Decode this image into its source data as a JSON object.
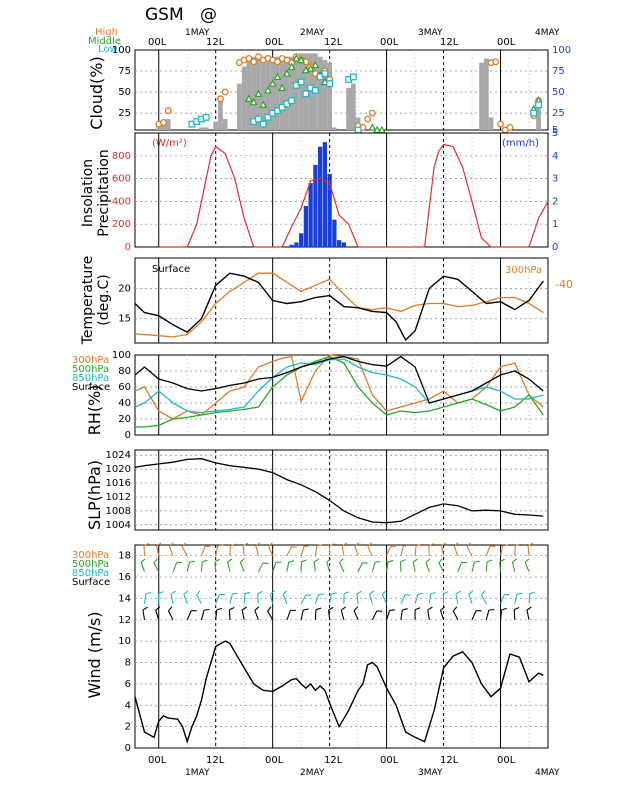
{
  "header": {
    "title": "GSM",
    "title_symbol": "@",
    "cloud_legend": [
      "High",
      "Middle",
      "Low"
    ]
  },
  "time_axis": {
    "top_tick_labels": [
      "00L",
      "12L",
      "00L",
      "12L",
      "00L",
      "12L",
      "00L"
    ],
    "top_day_labels": [
      "1MAY",
      "2MAY",
      "3MAY",
      "4MAY"
    ],
    "bottom_tick_labels": [
      "00L",
      "12L",
      "00L",
      "12L",
      "00L",
      "12L",
      "00L"
    ],
    "bottom_day_labels": [
      "1MAY",
      "2MAY",
      "3MAY",
      "4MAY"
    ],
    "x_range_hours": [
      -5,
      82
    ]
  },
  "colors": {
    "high": "#e07b28",
    "middle": "#2aa52a",
    "low": "#20b8c8",
    "surface": "#000000",
    "bar_gray": "#a8a8a8",
    "precip_blue": "#1a3fd8",
    "insolation_red": "#e03030",
    "axis_blue": "#1a3fd8"
  },
  "chart_data": [
    {
      "type": "bar",
      "panel": "cloud",
      "ylabel": "Cloud(%)",
      "ylim": [
        5,
        100
      ],
      "y_ticks_left": [
        "25",
        "50",
        "75",
        "100"
      ],
      "y_ticks_right": [
        "5",
        "25",
        "50",
        "75",
        "100"
      ],
      "total_cloud_bars": {
        "hours": [
          0,
          1,
          2,
          3,
          4,
          5,
          6,
          7,
          8,
          9,
          10,
          11,
          12,
          13,
          14,
          15,
          16,
          17,
          18,
          19,
          20,
          21,
          22,
          23,
          24,
          25,
          26,
          27,
          28,
          29,
          30,
          31,
          32,
          33,
          34,
          35,
          36,
          37,
          38,
          39,
          40,
          41,
          42,
          43,
          44,
          45,
          46,
          47,
          48,
          49,
          50,
          51,
          52,
          53,
          54,
          55,
          56,
          57,
          58,
          59,
          60,
          61,
          62,
          63,
          64,
          65,
          66,
          67,
          68,
          69,
          70,
          71,
          72,
          73,
          74,
          75,
          76,
          77,
          78,
          79,
          80
        ],
        "values": [
          15,
          15,
          18,
          5,
          5,
          5,
          5,
          5,
          5,
          8,
          8,
          5,
          15,
          40,
          18,
          5,
          5,
          60,
          80,
          88,
          92,
          90,
          88,
          88,
          90,
          92,
          90,
          90,
          92,
          95,
          96,
          96,
          96,
          96,
          92,
          88,
          85,
          8,
          5,
          5,
          55,
          60,
          20,
          10,
          5,
          5,
          5,
          5,
          5,
          5,
          5,
          5,
          5,
          5,
          5,
          5,
          5,
          5,
          5,
          5,
          5,
          5,
          5,
          5,
          5,
          5,
          5,
          5,
          85,
          90,
          20,
          5,
          5,
          5,
          5,
          5,
          5,
          5,
          5,
          5,
          40
        ]
      },
      "high_points": {
        "hours": [
          0,
          1,
          2,
          13,
          14,
          17,
          18,
          19,
          20,
          21,
          22,
          23,
          24,
          25,
          26,
          27,
          28,
          29,
          30,
          31,
          32,
          33,
          34,
          35,
          36,
          42,
          43,
          44,
          45,
          70,
          71,
          72,
          73,
          74,
          79,
          80
        ],
        "values": [
          12,
          14,
          28,
          42,
          50,
          85,
          88,
          90,
          86,
          92,
          88,
          90,
          88,
          86,
          90,
          88,
          85,
          92,
          88,
          86,
          80,
          72,
          70,
          75,
          65,
          10,
          8,
          18,
          25,
          85,
          86,
          12,
          5,
          8,
          22,
          40
        ]
      },
      "middle_points": {
        "hours": [
          19,
          20,
          21,
          22,
          23,
          24,
          25,
          26,
          27,
          28,
          29,
          30,
          31,
          32,
          33,
          34,
          35,
          45,
          46,
          47,
          79,
          80
        ],
        "values": [
          42,
          38,
          48,
          35,
          52,
          60,
          68,
          55,
          72,
          80,
          90,
          88,
          76,
          78,
          82,
          70,
          62,
          8,
          5,
          5,
          30,
          40
        ]
      },
      "low_points": {
        "hours": [
          7,
          8,
          9,
          10,
          20,
          21,
          22,
          23,
          24,
          25,
          26,
          27,
          28,
          29,
          30,
          31,
          32,
          33,
          34,
          35,
          36,
          40,
          41,
          42,
          79,
          80
        ],
        "values": [
          12,
          15,
          18,
          20,
          15,
          18,
          12,
          20,
          25,
          28,
          32,
          36,
          40,
          58,
          62,
          48,
          55,
          52,
          68,
          72,
          60,
          65,
          68,
          5,
          25,
          35
        ]
      }
    },
    {
      "type": "bar",
      "panel": "insolation_precipitation",
      "ylabel": "Insolation\nPrecipitation",
      "left_unit": "(W/m²)",
      "right_unit": "(mm/h)",
      "ylim_left": [
        0,
        1000
      ],
      "ylim_right": [
        0,
        5
      ],
      "y_ticks_left": [
        "0",
        "200",
        "400",
        "600",
        "800"
      ],
      "y_ticks_right": [
        "0",
        "1",
        "2",
        "3",
        "4",
        "5"
      ],
      "precip": {
        "hours": [
          28,
          29,
          30,
          31,
          32,
          33,
          34,
          35,
          36,
          37,
          38,
          39
        ],
        "values": [
          0.1,
          0.2,
          0.6,
          1.8,
          2.8,
          3.6,
          4.4,
          4.6,
          3.2,
          1.2,
          0.3,
          0.2
        ]
      },
      "insolation": {
        "hours": [
          0,
          2,
          4,
          6,
          8,
          10,
          11,
          12,
          14,
          16,
          18,
          20,
          22,
          24,
          26,
          28,
          30,
          32,
          34,
          36,
          38,
          40,
          42,
          44,
          46,
          48,
          50,
          52,
          54,
          56,
          58,
          59,
          60,
          62,
          64,
          66,
          68,
          70,
          72,
          74,
          76,
          78,
          80,
          82
        ],
        "values": [
          0,
          0,
          0,
          0,
          200,
          600,
          800,
          880,
          820,
          600,
          250,
          0,
          0,
          0,
          0,
          180,
          340,
          580,
          600,
          560,
          280,
          200,
          0,
          0,
          0,
          0,
          0,
          0,
          0,
          0,
          700,
          840,
          900,
          880,
          700,
          400,
          80,
          0,
          0,
          0,
          0,
          0,
          250,
          400
        ]
      }
    },
    {
      "type": "line",
      "panel": "temperature",
      "ylabel": "Temperature\n(deg.C)",
      "ylim": [
        11,
        25
      ],
      "y_ticks_left": [
        "15",
        "20"
      ],
      "annotations": [
        "Surface",
        "300hPa",
        "-40"
      ],
      "series": [
        {
          "name": "Surface",
          "x": [
            -5,
            -3,
            0,
            3,
            6,
            9,
            12,
            15,
            18,
            21,
            24,
            27,
            30,
            33,
            36,
            39,
            42,
            45,
            48,
            50,
            52,
            54,
            57,
            60,
            63,
            66,
            69,
            72,
            75,
            78,
            81
          ],
          "y": [
            17.5,
            16,
            15.5,
            14,
            12.8,
            15,
            20.5,
            22.5,
            22,
            21,
            18,
            17.5,
            17.8,
            18.5,
            18.8,
            17,
            16.8,
            16.2,
            16,
            14.5,
            11.5,
            13,
            20,
            22,
            21.5,
            19.5,
            17.5,
            17.8,
            16.5,
            18,
            21.2
          ]
        },
        {
          "name": "300hPa",
          "x": [
            -5,
            0,
            3,
            6,
            9,
            12,
            15,
            18,
            21,
            24,
            27,
            30,
            33,
            36,
            39,
            42,
            45,
            48,
            51,
            54,
            57,
            60,
            63,
            66,
            69,
            72,
            75,
            78,
            81
          ],
          "y": [
            12.5,
            12.2,
            12,
            12.4,
            14.5,
            17.5,
            19.5,
            21,
            22.5,
            22.5,
            21,
            19.5,
            20.5,
            21.5,
            19,
            16.8,
            16.5,
            16.8,
            16.2,
            17.2,
            17.5,
            17.5,
            17,
            17.2,
            17.8,
            18.5,
            18.5,
            17.5,
            16
          ]
        }
      ]
    },
    {
      "type": "line",
      "panel": "relative_humidity",
      "ylabel": "RH(%)",
      "ylim": [
        0,
        100
      ],
      "y_ticks_left": [
        "0",
        "20",
        "40",
        "60",
        "80",
        "100"
      ],
      "legend": [
        "300hPa",
        "500hPa",
        "850hPa",
        "Surface"
      ],
      "series": [
        {
          "name": "300hPa",
          "x": [
            -5,
            -3,
            0,
            3,
            6,
            9,
            12,
            15,
            18,
            21,
            24,
            26,
            28,
            30,
            33,
            36,
            39,
            42,
            45,
            48,
            51,
            54,
            57,
            60,
            63,
            66,
            69,
            72,
            75,
            78,
            81
          ],
          "y": [
            55,
            60,
            30,
            20,
            30,
            25,
            40,
            55,
            60,
            85,
            92,
            96,
            98,
            42,
            80,
            100,
            98,
            95,
            50,
            30,
            35,
            40,
            45,
            55,
            40,
            45,
            60,
            85,
            90,
            50,
            35
          ]
        },
        {
          "name": "500hPa",
          "x": [
            -5,
            -3,
            0,
            3,
            6,
            9,
            12,
            15,
            18,
            21,
            24,
            27,
            30,
            33,
            36,
            39,
            42,
            45,
            48,
            51,
            54,
            57,
            60,
            63,
            66,
            69,
            72,
            75,
            78,
            81
          ],
          "y": [
            10,
            10,
            12,
            20,
            22,
            25,
            28,
            30,
            32,
            35,
            60,
            75,
            85,
            92,
            98,
            90,
            60,
            40,
            25,
            30,
            28,
            30,
            35,
            40,
            45,
            38,
            30,
            35,
            50,
            25
          ]
        },
        {
          "name": "850hPa",
          "x": [
            -5,
            -3,
            0,
            3,
            6,
            9,
            12,
            15,
            18,
            21,
            24,
            27,
            30,
            33,
            36,
            39,
            42,
            45,
            48,
            51,
            54,
            57,
            60,
            63,
            66,
            69,
            72,
            75,
            78,
            81
          ],
          "y": [
            35,
            40,
            55,
            40,
            30,
            28,
            30,
            32,
            35,
            55,
            72,
            85,
            90,
            88,
            94,
            95,
            85,
            78,
            75,
            70,
            60,
            40,
            45,
            50,
            55,
            60,
            55,
            45,
            45,
            50
          ]
        },
        {
          "name": "Surface",
          "x": [
            -5,
            -3,
            0,
            3,
            6,
            9,
            12,
            15,
            18,
            21,
            24,
            27,
            30,
            33,
            36,
            39,
            42,
            45,
            48,
            51,
            54,
            57,
            60,
            63,
            66,
            69,
            72,
            75,
            78,
            81
          ],
          "y": [
            75,
            85,
            70,
            65,
            58,
            55,
            58,
            62,
            65,
            70,
            72,
            78,
            85,
            90,
            95,
            98,
            92,
            88,
            86,
            98,
            85,
            40,
            45,
            50,
            55,
            65,
            75,
            80,
            70,
            55
          ]
        }
      ]
    },
    {
      "type": "line",
      "panel": "sea_level_pressure",
      "ylabel": "SLP(hPa)",
      "ylim": [
        1002.5,
        1025.5
      ],
      "y_ticks_left": [
        "1004",
        "1008",
        "1012",
        "1016",
        "1020",
        "1024"
      ],
      "series": [
        {
          "name": "SLP",
          "x": [
            -5,
            -3,
            0,
            3,
            6,
            9,
            12,
            15,
            18,
            21,
            24,
            27,
            30,
            33,
            36,
            39,
            42,
            45,
            48,
            51,
            54,
            57,
            60,
            63,
            66,
            69,
            72,
            75,
            78,
            81
          ],
          "y": [
            1020.5,
            1021,
            1021.5,
            1022,
            1022.8,
            1023,
            1021.8,
            1021,
            1020.5,
            1020,
            1019,
            1017,
            1015.5,
            1013.5,
            1011,
            1008,
            1006,
            1004.8,
            1004.6,
            1005,
            1007,
            1009,
            1010,
            1009.5,
            1008,
            1008.2,
            1008,
            1007,
            1006.8,
            1006.5
          ]
        }
      ]
    },
    {
      "type": "line",
      "panel": "wind",
      "ylabel": "Wind  (m/s)",
      "ylim": [
        0,
        19
      ],
      "y_ticks_left": [
        "0",
        "2",
        "4",
        "6",
        "8",
        "10",
        "12",
        "14",
        "16",
        "18"
      ],
      "legend": [
        "300hPa",
        "500hPa",
        "850hPa",
        "Surface"
      ],
      "series": [
        {
          "name": "Surface",
          "x": [
            -5,
            -3,
            -1,
            0,
            1,
            2,
            4,
            5,
            6,
            7,
            8,
            9,
            10,
            12,
            14,
            15,
            16,
            18,
            20,
            22,
            24,
            26,
            28,
            29,
            30,
            31,
            32,
            33,
            34,
            35,
            36,
            38,
            40,
            42,
            43,
            44,
            45,
            46,
            48,
            50,
            52,
            54,
            56,
            58,
            60,
            62,
            64,
            66,
            68,
            70,
            72,
            74,
            76,
            78,
            80,
            81
          ],
          "y": [
            4.8,
            1.5,
            1,
            2.5,
            3,
            2.8,
            2.7,
            2,
            0.6,
            2,
            3,
            4.5,
            6.5,
            9.5,
            10,
            9.8,
            9,
            7.5,
            6,
            5.4,
            5.3,
            5.8,
            6.4,
            6.5,
            6.0,
            5.6,
            6.0,
            5.4,
            5.8,
            5.4,
            4.2,
            2,
            3.5,
            5.4,
            6,
            7.8,
            8,
            7.6,
            5.6,
            4,
            1.5,
            1,
            0.6,
            3.5,
            7.5,
            8.6,
            9,
            8,
            6,
            4.8,
            5.6,
            8.8,
            8.5,
            6.2,
            7,
            6.8
          ]
        }
      ]
    }
  ]
}
